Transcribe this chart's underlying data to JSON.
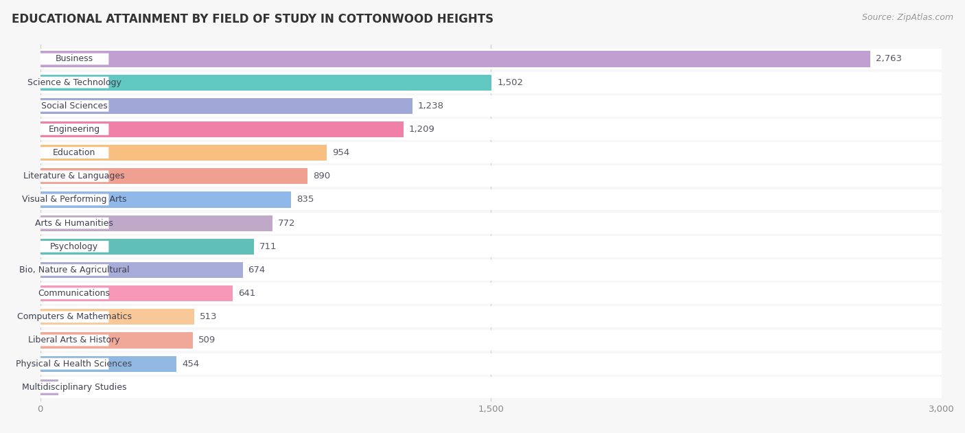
{
  "title": "EDUCATIONAL ATTAINMENT BY FIELD OF STUDY IN COTTONWOOD HEIGHTS",
  "source": "Source: ZipAtlas.com",
  "categories": [
    "Business",
    "Science & Technology",
    "Social Sciences",
    "Engineering",
    "Education",
    "Literature & Languages",
    "Visual & Performing Arts",
    "Arts & Humanities",
    "Psychology",
    "Bio, Nature & Agricultural",
    "Communications",
    "Computers & Mathematics",
    "Liberal Arts & History",
    "Physical & Health Sciences",
    "Multidisciplinary Studies"
  ],
  "values": [
    2763,
    1502,
    1238,
    1209,
    954,
    890,
    835,
    772,
    711,
    674,
    641,
    513,
    509,
    454,
    60
  ],
  "colors": [
    "#c0a0d0",
    "#60c8c0",
    "#a0a8d8",
    "#f080a8",
    "#f8c080",
    "#f0a090",
    "#90b8e8",
    "#c0a8c8",
    "#60c0b8",
    "#a8acd8",
    "#f898b8",
    "#f8c898",
    "#f0a898",
    "#90b8e0",
    "#c0a8d0"
  ],
  "xlim": [
    0,
    3000
  ],
  "xticks": [
    0,
    1500,
    3000
  ],
  "background_color": "#f7f7f7",
  "row_bg_color": "#ffffff",
  "title_fontsize": 12,
  "value_fontsize": 9.5,
  "label_fontsize": 9
}
